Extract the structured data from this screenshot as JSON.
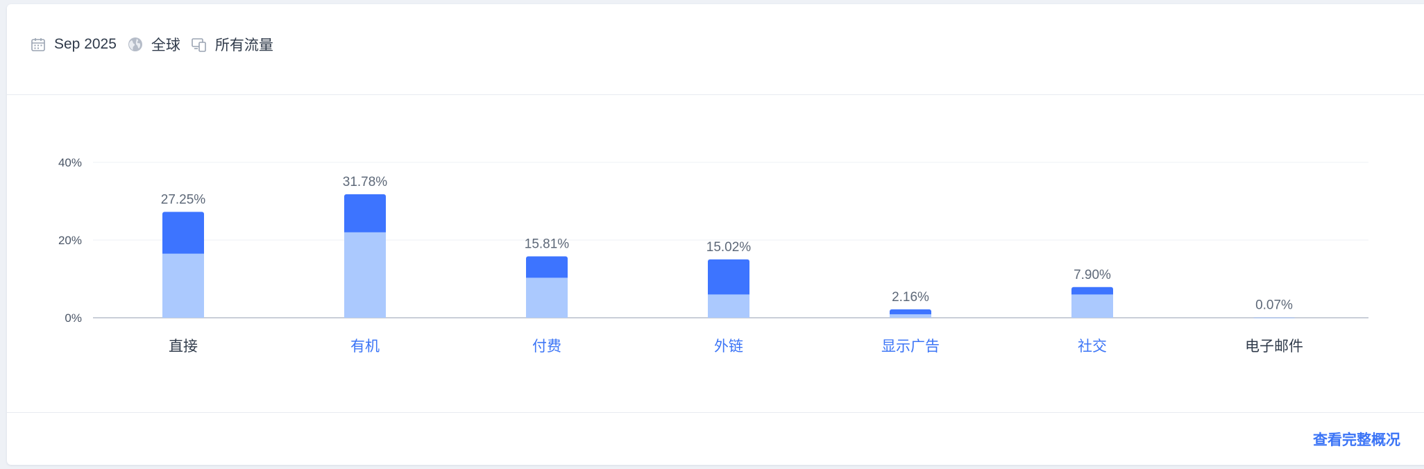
{
  "filters": {
    "date": "Sep 2025",
    "region": "全球",
    "traffic": "所有流量",
    "icons": [
      "calendar-icon",
      "globe-icon",
      "devices-icon"
    ]
  },
  "footer": {
    "link_label": "查看完整概况"
  },
  "colors": {
    "dark_segment": "#3d74ff",
    "light_segment": "#abc9fe",
    "link": "#3b74f6",
    "label": "#2f3a4a",
    "axis_text": "#4a5566",
    "grid": "#eef0f4"
  },
  "chart_data": {
    "type": "bar",
    "stacked": true,
    "categories": [
      "直接",
      "有机",
      "付费",
      "外链",
      "显示广告",
      "社交",
      "电子邮件"
    ],
    "category_is_link": [
      false,
      true,
      true,
      true,
      true,
      true,
      false
    ],
    "totals": [
      27.25,
      31.78,
      15.81,
      15.02,
      2.16,
      7.9,
      0.07
    ],
    "total_labels": [
      "27.25%",
      "31.78%",
      "15.81%",
      "15.02%",
      "2.16%",
      "7.90%",
      "0.07%"
    ],
    "series": [
      {
        "values": [
          16.5,
          22.0,
          10.3,
          6.0,
          0.9,
          6.0,
          0.07
        ]
      },
      {
        "values": [
          10.75,
          9.78,
          5.51,
          9.02,
          1.26,
          1.9,
          0.0
        ]
      }
    ],
    "yticks": [
      0,
      20,
      40
    ],
    "ytick_labels": [
      "0%",
      "20%",
      "40%"
    ],
    "ylim": [
      0,
      40
    ],
    "grid": true,
    "title": "",
    "xlabel": "",
    "ylabel": ""
  }
}
